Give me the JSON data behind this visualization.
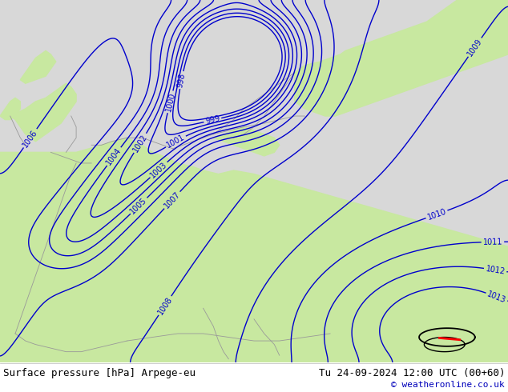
{
  "title_left": "Surface pressure [hPa] Arpege-eu",
  "title_right": "Tu 24-09-2024 12:00 UTC (00+60)",
  "copyright": "© weatheronline.co.uk",
  "land_color": "#c8e8a0",
  "sea_color": "#d8d8d8",
  "isobar_color": "#0000cc",
  "footer_bg": "#ffffff",
  "footer_text_color": "#000000",
  "copyright_color": "#0000bb",
  "figsize": [
    6.34,
    4.9
  ],
  "dpi": 100,
  "isobar_levels": [
    998,
    999,
    1000,
    1001,
    1002,
    1003,
    1004,
    1005,
    1006,
    1007,
    1008,
    1009,
    1010,
    1011,
    1012,
    1013
  ],
  "coastline_color": "#999999",
  "black_contour_color": "#000000",
  "red_feature_color": "#ff0000"
}
